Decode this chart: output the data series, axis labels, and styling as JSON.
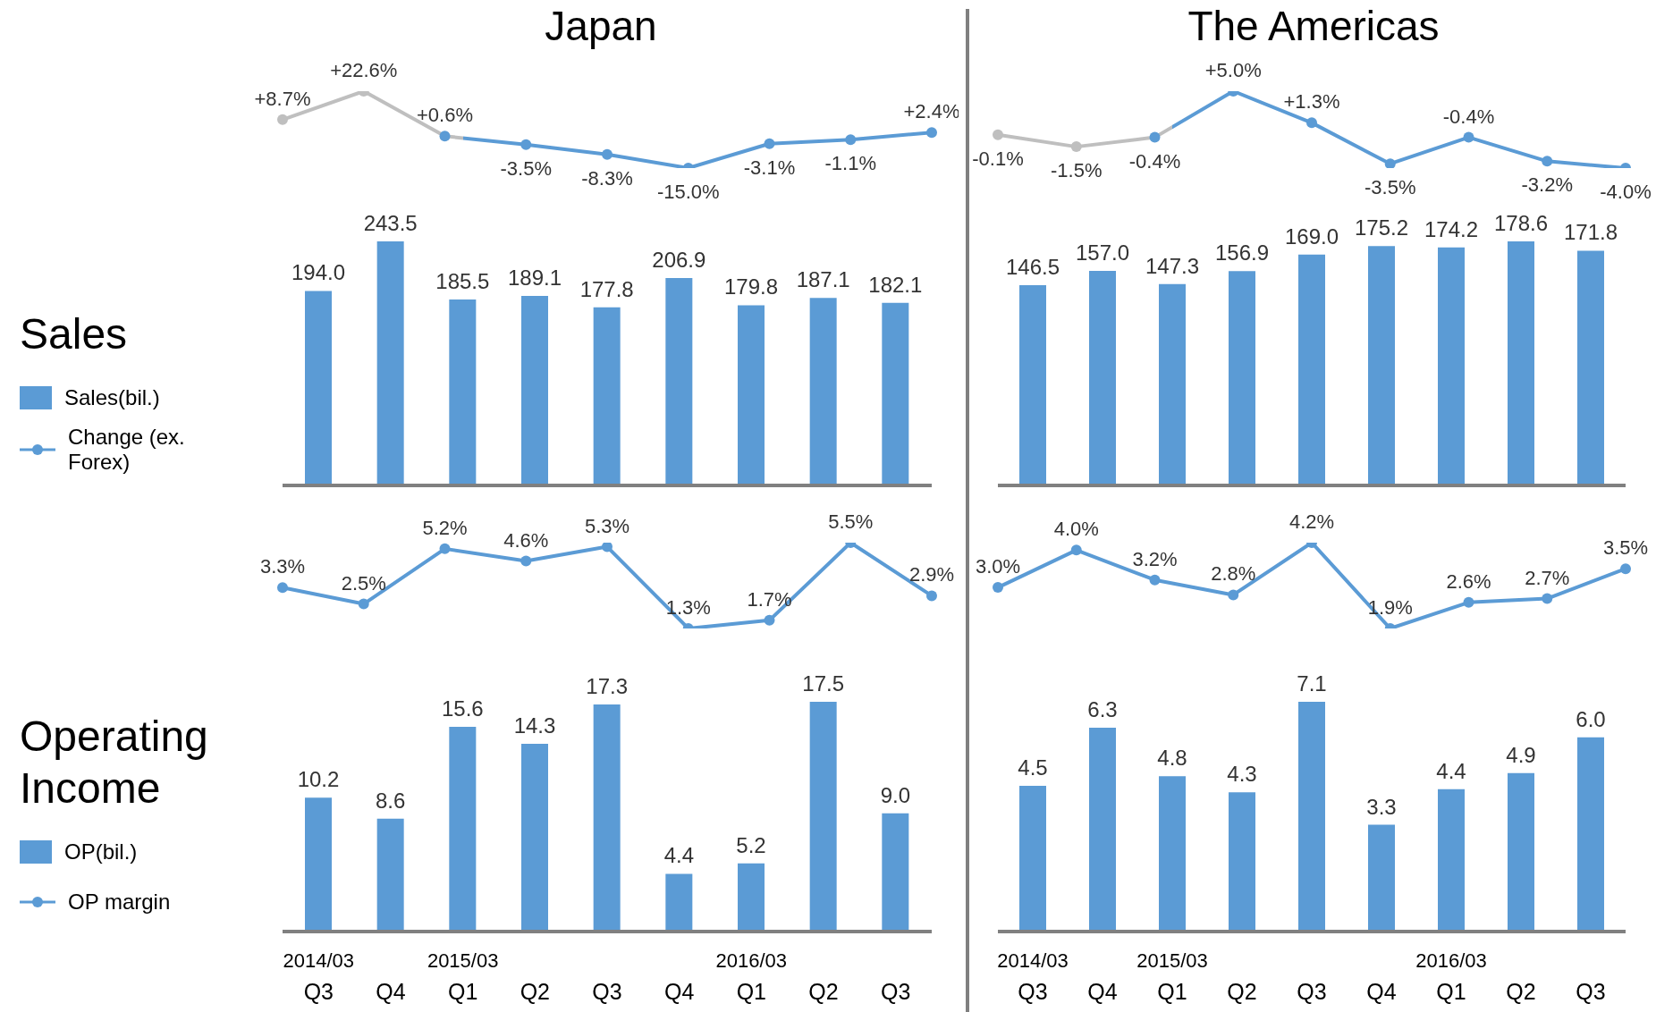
{
  "chart_data": [
    {
      "type": "line",
      "title": "Japan",
      "legend": "left",
      "categories": [
        null,
        null,
        null,
        null,
        null,
        null,
        null,
        null,
        null
      ],
      "series": [
        {
          "name": "Change (ex. Forex)",
          "color": "#5b9bd5",
          "colors": [
            "#bfbfbf",
            "#bfbfbf",
            null,
            null,
            null,
            null,
            null,
            null,
            null
          ],
          "marker": "circle",
          "values": [
            8.7,
            22.6,
            0.6,
            -3.5,
            -8.3,
            -15.0,
            -3.1,
            -1.1,
            2.4
          ],
          "value_labels": [
            "+8.7%",
            "+22.6%",
            "+0.6%",
            "-3.5%",
            "-8.3%",
            "-15.0%",
            "-3.1%",
            "-1.1%",
            "+2.4%"
          ]
        }
      ]
    },
    {
      "type": "bar",
      "ylabel": "Sales",
      "legend": "left",
      "categories": [
        null,
        null,
        null,
        null,
        null,
        null,
        null,
        null,
        null
      ],
      "series": [
        {
          "name": "Sales(bil.)",
          "color": "#5b9bd5",
          "values": [
            194.0,
            243.5,
            185.5,
            189.1,
            177.8,
            206.9,
            179.8,
            187.1,
            182.1
          ],
          "value_labels": [
            "194.0",
            "243.5",
            "185.5",
            "189.1",
            "177.8",
            "206.9",
            "179.8",
            "187.1",
            "182.1"
          ]
        }
      ]
    },
    {
      "type": "line",
      "title": "The Americas",
      "categories": [
        null,
        null,
        null,
        null,
        null,
        null,
        null,
        null,
        null
      ],
      "series": [
        {
          "color": "#5b9bd5",
          "colors": [
            "#bfbfbf",
            "#bfbfbf",
            null,
            null,
            null,
            null,
            null,
            null,
            null
          ],
          "marker": "circle",
          "values": [
            -0.1,
            -1.5,
            -0.4,
            5.0,
            1.3,
            -3.5,
            -0.4,
            -3.2,
            -4.0
          ],
          "value_labels": [
            "-0.1%",
            "-1.5%",
            "-0.4%",
            "+5.0%",
            "+1.3%",
            "-3.5%",
            "-0.4%",
            "-3.2%",
            "-4.0%"
          ]
        }
      ]
    },
    {
      "type": "bar",
      "categories": [
        null,
        null,
        null,
        null,
        null,
        null,
        null,
        null,
        null
      ],
      "series": [
        {
          "color": "#5b9bd5",
          "values": [
            146.5,
            157.0,
            147.3,
            156.9,
            169.0,
            175.2,
            174.2,
            178.6,
            171.8
          ],
          "value_labels": [
            "146.5",
            "157.0",
            "147.3",
            "156.9",
            "169.0",
            "175.2",
            "174.2",
            "178.6",
            "171.8"
          ]
        }
      ]
    },
    {
      "type": "line",
      "legend": "left",
      "categories": [
        null,
        null,
        null,
        null,
        null,
        null,
        null,
        null,
        null
      ],
      "series": [
        {
          "name": "OP margin",
          "color": "#5b9bd5",
          "marker": "circle",
          "values": [
            3.3,
            2.5,
            5.2,
            4.6,
            5.3,
            1.3,
            1.7,
            5.5,
            2.9
          ],
          "value_labels": [
            "3.3%",
            "2.5%",
            "5.2%",
            "4.6%",
            "5.3%",
            "1.3%",
            "1.7%",
            "5.5%",
            "2.9%"
          ]
        }
      ]
    },
    {
      "type": "bar",
      "ylabel": "Operating Income",
      "legend": "left",
      "categories": [
        "2014/03 Q3",
        "Q4",
        "2015/03 Q1",
        "Q2",
        "Q3",
        "Q4",
        "2016/03 Q1",
        "Q2",
        "Q3"
      ],
      "series": [
        {
          "name": "OP(bil.)",
          "color": "#5b9bd5",
          "values": [
            10.2,
            8.6,
            15.6,
            14.3,
            17.3,
            4.4,
            5.2,
            17.5,
            9.0
          ],
          "value_labels": [
            "10.2",
            "8.6",
            "15.6",
            "14.3",
            "17.3",
            "4.4",
            "5.2",
            "17.5",
            "9.0"
          ]
        }
      ]
    },
    {
      "type": "line",
      "categories": [
        null,
        null,
        null,
        null,
        null,
        null,
        null,
        null,
        null
      ],
      "series": [
        {
          "color": "#5b9bd5",
          "marker": "circle",
          "values": [
            3.0,
            4.0,
            3.2,
            2.8,
            4.2,
            1.9,
            2.6,
            2.7,
            3.5
          ],
          "value_labels": [
            "3.0%",
            "4.0%",
            "3.2%",
            "2.8%",
            "4.2%",
            "1.9%",
            "2.6%",
            "2.7%",
            "3.5%"
          ]
        }
      ]
    },
    {
      "type": "bar",
      "categories": [
        "2014/03 Q3",
        "Q4",
        "2015/03 Q1",
        "Q2",
        "Q3",
        "Q4",
        "2016/03 Q1",
        "Q2",
        "Q3"
      ],
      "series": [
        {
          "color": "#5b9bd5",
          "values": [
            4.5,
            6.3,
            4.8,
            4.3,
            7.1,
            3.3,
            4.4,
            4.9,
            6.0
          ],
          "value_labels": [
            "4.5",
            "6.3",
            "4.8",
            "4.3",
            "7.1",
            "3.3",
            "4.4",
            "4.9",
            "6.0"
          ]
        }
      ]
    }
  ]
}
